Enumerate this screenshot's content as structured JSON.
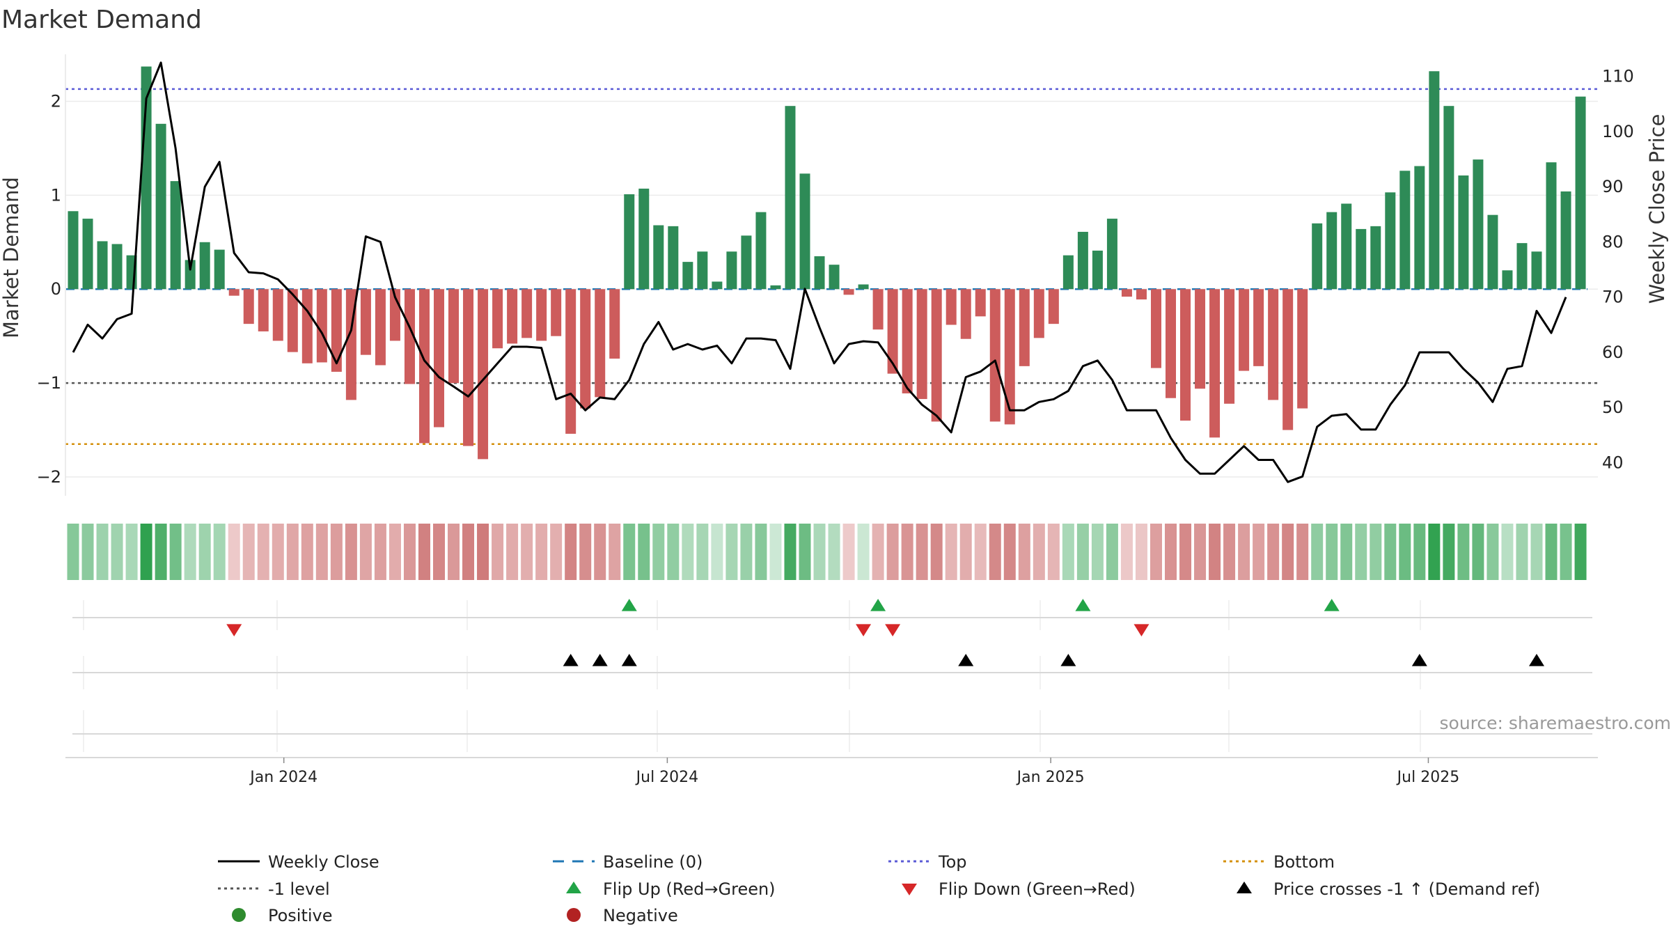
{
  "title": "Market Demand",
  "source": "source: sharemaestro.com",
  "colors": {
    "positive": "#2e8b57",
    "negative": "#cd5c5c",
    "line": "#000000",
    "baseline": "#1f77b4",
    "top": "#5b5bd6",
    "level": "#555555",
    "bottom": "#d4900d",
    "flip_up": "#22a447",
    "flip_down": "#d62728"
  },
  "chart_data": {
    "type": "bar+line",
    "title": "Market Demand",
    "ylabel_left": "Market Demand",
    "ylabel_right": "Weekly Close Price",
    "ylim_left": [
      -2.2,
      2.5
    ],
    "ylim_right": [
      34,
      114
    ],
    "yticks_left": [
      {
        "v": 2,
        "label": "2"
      },
      {
        "v": 1,
        "label": "1"
      },
      {
        "v": 0,
        "label": "0"
      },
      {
        "v": -1,
        "label": "−1"
      },
      {
        "v": -2,
        "label": "−2"
      }
    ],
    "yticks_right": [
      {
        "v": 110,
        "label": "110"
      },
      {
        "v": 100,
        "label": "100"
      },
      {
        "v": 90,
        "label": "90"
      },
      {
        "v": 80,
        "label": "80"
      },
      {
        "v": 70,
        "label": "70"
      },
      {
        "v": 60,
        "label": "60"
      },
      {
        "v": 50,
        "label": "50"
      },
      {
        "v": 40,
        "label": "40"
      }
    ],
    "x_ticks": [
      {
        "i": 14.4,
        "label": "Jan 2024"
      },
      {
        "i": 40.6,
        "label": "Jul 2024"
      },
      {
        "i": 66.8,
        "label": "Jan 2025"
      },
      {
        "i": 92.6,
        "label": "Jul 2025"
      }
    ],
    "levels": {
      "baseline": 0,
      "top": 2.13,
      "minus_one": -1,
      "bottom": -1.65
    },
    "demand": [
      0.83,
      0.75,
      0.51,
      0.48,
      0.36,
      2.37,
      1.76,
      1.15,
      0.31,
      0.5,
      0.42,
      -0.07,
      -0.37,
      -0.45,
      -0.55,
      -0.67,
      -0.79,
      -0.78,
      -0.88,
      -1.18,
      -0.7,
      -0.81,
      -0.55,
      -1.01,
      -1.64,
      -1.47,
      -1.0,
      -1.67,
      -1.81,
      -0.63,
      -0.58,
      -0.52,
      -0.55,
      -0.5,
      -1.54,
      -1.27,
      -1.15,
      -0.74,
      1.01,
      1.07,
      0.68,
      0.67,
      0.29,
      0.4,
      0.08,
      0.4,
      0.57,
      0.82,
      0.04,
      1.95,
      1.23,
      0.35,
      0.26,
      -0.06,
      0.05,
      -0.43,
      -0.9,
      -1.11,
      -1.17,
      -1.41,
      -0.38,
      -0.53,
      -0.29,
      -1.41,
      -1.44,
      -0.82,
      -0.52,
      -0.37,
      0.36,
      0.61,
      0.41,
      0.75,
      -0.08,
      -0.11,
      -0.84,
      -1.16,
      -1.4,
      -1.06,
      -1.58,
      -1.22,
      -0.87,
      -0.82,
      -1.18,
      -1.5,
      -1.27,
      0.7,
      0.82,
      0.91,
      0.64,
      0.67,
      1.03,
      1.26,
      1.31,
      2.32,
      1.95,
      1.21,
      1.38,
      0.79,
      0.2,
      0.49,
      0.4,
      1.35,
      1.04,
      2.05
    ],
    "close": [
      60,
      65,
      62.5,
      66,
      67,
      106,
      112.5,
      97,
      75,
      90,
      94.5,
      78,
      74.5,
      74.3,
      73.2,
      70.5,
      67.5,
      63.5,
      58,
      64,
      81,
      80,
      70,
      64.5,
      58.5,
      55.5,
      53.8,
      52,
      55,
      58,
      61,
      61,
      60.8,
      51.5,
      52.5,
      49.5,
      51.8,
      51.5,
      55,
      61.5,
      65.5,
      60.5,
      61.5,
      60.5,
      61.2,
      58,
      62.5,
      62.5,
      62.2,
      57,
      71.5,
      64.5,
      58,
      61.5,
      62,
      61.8,
      58,
      53.5,
      50.5,
      48.5,
      45.5,
      55.5,
      56.5,
      58.5,
      49.5,
      49.5,
      51,
      51.5,
      53,
      57.5,
      58.5,
      55,
      49.5,
      49.5,
      49.5,
      44.5,
      40.5,
      38,
      38,
      40.5,
      43,
      40.5,
      40.5,
      36.5,
      37.5,
      46.5,
      48.5,
      48.8,
      46,
      46,
      50.5,
      54,
      60,
      60,
      60,
      57,
      54.5,
      51,
      57,
      57.5,
      67.5,
      63.5,
      70
    ],
    "flip_up_idx": [
      38,
      55,
      69,
      86
    ],
    "flip_down_idx": [
      11,
      54,
      56,
      73
    ],
    "price_cross_idx": [
      34,
      36,
      38,
      61,
      68,
      92,
      100
    ]
  },
  "legend": [
    {
      "key": "weekly-close",
      "label": "Weekly Close",
      "kind": "line"
    },
    {
      "key": "baseline",
      "label": "Baseline (0)",
      "kind": "dash"
    },
    {
      "key": "top",
      "label": "Top",
      "kind": "dot-top"
    },
    {
      "key": "bottom",
      "label": "Bottom",
      "kind": "dot-bottom"
    },
    {
      "key": "minus-one-level",
      "label": "-1 level",
      "kind": "dot-level"
    },
    {
      "key": "flip-up",
      "label": "Flip Up (Red→Green)",
      "kind": "tri-up-green"
    },
    {
      "key": "flip-down",
      "label": "Flip Down (Green→Red)",
      "kind": "tri-down-red"
    },
    {
      "key": "price-cross",
      "label": "Price crosses -1 ↑ (Demand ref)",
      "kind": "tri-up-black"
    },
    {
      "key": "positive",
      "label": "Positive",
      "kind": "circle-green"
    },
    {
      "key": "negative",
      "label": "Negative",
      "kind": "circle-red"
    }
  ]
}
